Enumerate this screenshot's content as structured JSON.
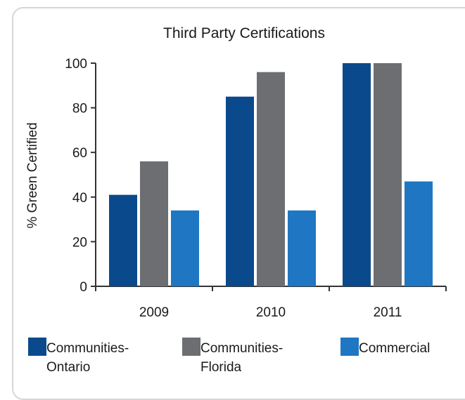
{
  "chart_data": {
    "type": "bar",
    "title": "Third Party Certifications",
    "xlabel": "",
    "ylabel": "% Green Certified",
    "categories": [
      "2009",
      "2010",
      "2011"
    ],
    "ylim": [
      0,
      100
    ],
    "yticks": [
      0,
      20,
      40,
      60,
      80,
      100
    ],
    "series": [
      {
        "name": "Communities-Ontario",
        "label_lines": [
          "Communities-",
          "Ontario"
        ],
        "color": "#0a4a8c",
        "values": [
          41,
          85,
          100
        ]
      },
      {
        "name": "Communities-Florida",
        "label_lines": [
          "Communities-",
          "Florida"
        ],
        "color": "#6d6e71",
        "values": [
          56,
          96,
          100
        ]
      },
      {
        "name": "Commercial",
        "label_lines": [
          "Commercial"
        ],
        "color": "#1f76c2",
        "values": [
          34,
          34,
          47
        ]
      }
    ],
    "grid": false,
    "legend_position": "bottom"
  }
}
